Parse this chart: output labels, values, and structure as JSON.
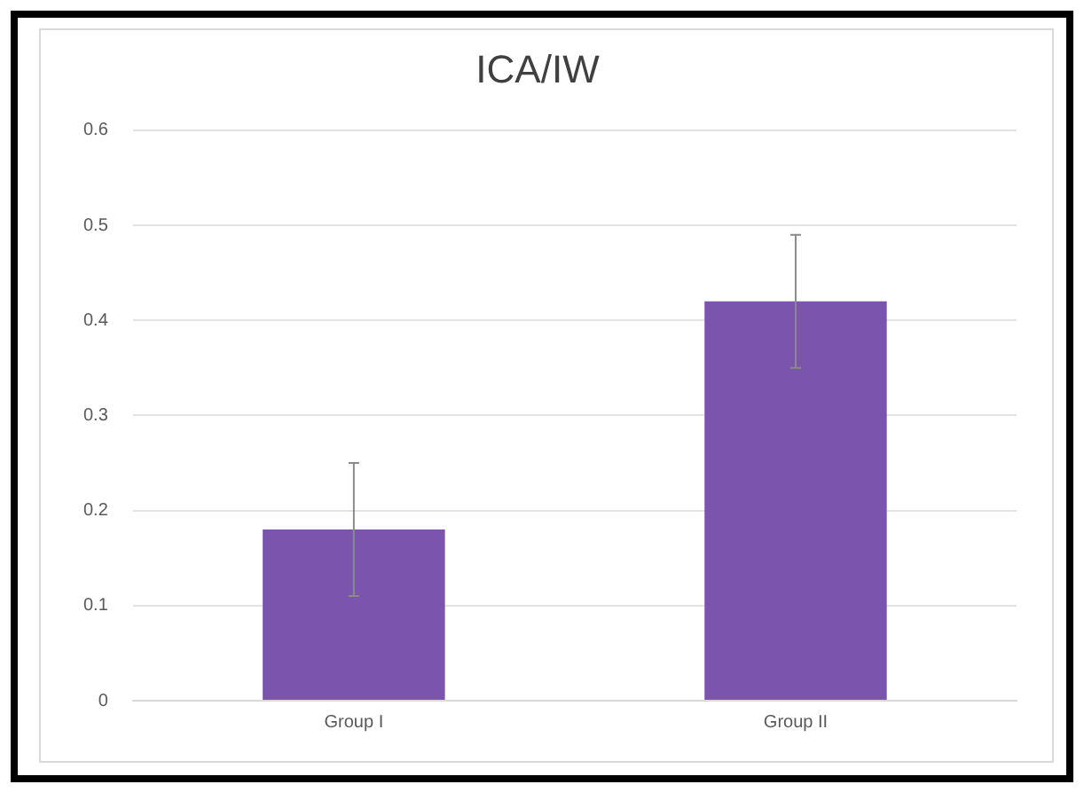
{
  "chart_data": {
    "type": "bar",
    "title": "ICA/IW",
    "categories": [
      "Group I",
      "Group II"
    ],
    "values": [
      0.18,
      0.42
    ],
    "errors": [
      0.07,
      0.07
    ],
    "color": "#7b55ad",
    "ylim": [
      0,
      0.6
    ],
    "yticks": [
      0,
      0.1,
      0.2,
      0.3,
      0.4,
      0.5,
      0.6
    ],
    "grid": "y"
  }
}
